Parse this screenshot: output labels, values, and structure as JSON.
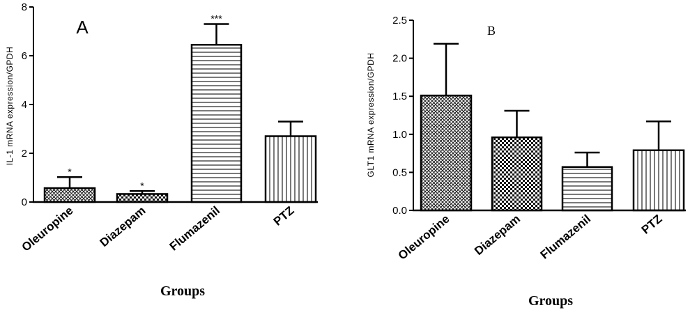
{
  "chart_data": [
    {
      "type": "bar",
      "panel_letter": "A",
      "categories": [
        "Oleuropine",
        "Diazepam",
        "Flumazenil",
        "PTZ"
      ],
      "values": [
        0.57,
        0.33,
        6.45,
        2.7
      ],
      "errors": [
        0.45,
        0.12,
        0.85,
        0.6
      ],
      "significance": [
        "*",
        "*",
        "***",
        ""
      ],
      "patterns": [
        "crosshatch",
        "checker",
        "horizontal",
        "vertical"
      ],
      "ylabel": "IL-1 mRNA expression/GPDH",
      "xlabel": "Groups",
      "ylim": [
        0,
        8
      ],
      "yticks": [
        "0",
        "2",
        "4",
        "6",
        "8"
      ],
      "grid": false
    },
    {
      "type": "bar",
      "panel_letter": "B",
      "categories": [
        "Oleuropine",
        "Diazepam",
        "Flumazenil",
        "PTZ"
      ],
      "values": [
        1.51,
        0.96,
        0.57,
        0.79
      ],
      "errors": [
        0.68,
        0.35,
        0.19,
        0.38
      ],
      "significance": [
        "",
        "",
        "",
        ""
      ],
      "patterns": [
        "crosshatch",
        "checker",
        "horizontal",
        "vertical"
      ],
      "ylabel": "GLT1 mRNA expression/GPDH",
      "xlabel": "Groups",
      "ylim": [
        0,
        2.5
      ],
      "yticks": [
        "0.0",
        "0.5",
        "1.0",
        "1.5",
        "2.0",
        "2.5"
      ],
      "grid": false
    }
  ]
}
